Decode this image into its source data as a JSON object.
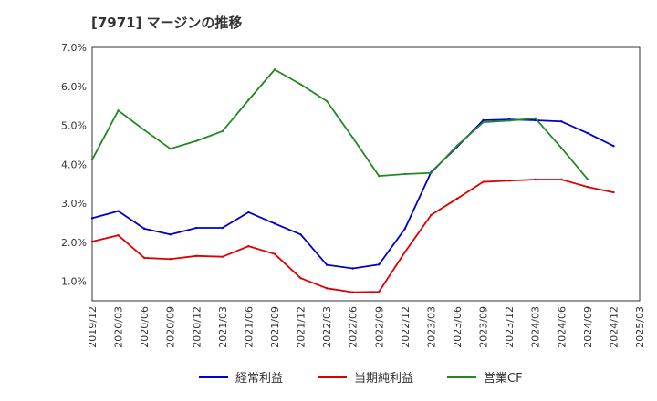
{
  "chart_data": {
    "type": "line",
    "title": "[7971]  マージンの推移",
    "xlabel": "",
    "ylabel": "",
    "ylim": [
      0.5,
      7.0
    ],
    "yticks": [
      1.0,
      2.0,
      3.0,
      4.0,
      5.0,
      6.0,
      7.0
    ],
    "ytick_labels": [
      "1.0%",
      "2.0%",
      "3.0%",
      "4.0%",
      "5.0%",
      "6.0%",
      "7.0%"
    ],
    "categories": [
      "2019/12",
      "2020/03",
      "2020/06",
      "2020/09",
      "2020/12",
      "2021/03",
      "2021/06",
      "2021/09",
      "2021/12",
      "2022/03",
      "2022/06",
      "2022/09",
      "2022/12",
      "2023/03",
      "2023/06",
      "2023/09",
      "2023/12",
      "2024/03",
      "2024/06",
      "2024/09",
      "2024/12",
      "2025/03"
    ],
    "series": [
      {
        "name": "経常利益",
        "color": "#0000cc",
        "values": [
          2.62,
          2.8,
          2.35,
          2.2,
          2.37,
          2.37,
          2.77,
          2.48,
          2.2,
          1.42,
          1.33,
          1.43,
          2.35,
          3.8,
          4.45,
          5.13,
          5.15,
          5.13,
          5.1,
          4.8,
          4.47,
          null
        ]
      },
      {
        "name": "当期純利益",
        "color": "#dd0000",
        "values": [
          2.02,
          2.18,
          1.6,
          1.57,
          1.65,
          1.63,
          1.9,
          1.7,
          1.08,
          0.82,
          0.72,
          0.73,
          1.75,
          2.7,
          3.12,
          3.55,
          3.58,
          3.61,
          3.61,
          3.42,
          3.28,
          null
        ]
      },
      {
        "name": "営業CF",
        "color": "#228822",
        "values": [
          4.12,
          5.38,
          4.88,
          4.4,
          4.6,
          4.85,
          5.65,
          6.43,
          6.05,
          5.62,
          4.68,
          3.7,
          3.75,
          3.78,
          4.48,
          5.08,
          5.12,
          5.18,
          4.42,
          3.62,
          null,
          null
        ]
      }
    ],
    "legend_position": "bottom",
    "grid": true
  }
}
